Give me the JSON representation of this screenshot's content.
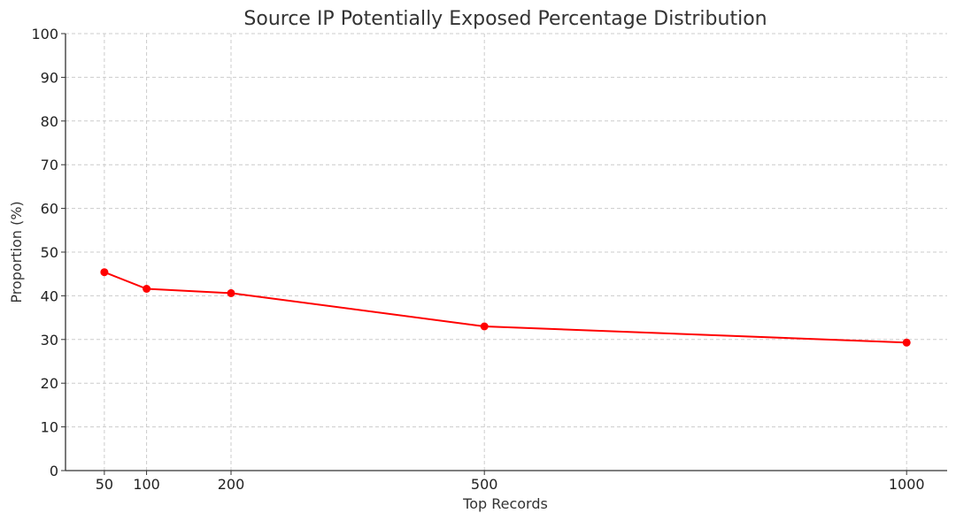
{
  "chart_data": {
    "type": "line",
    "title": "Source IP Potentially Exposed Percentage Distribution",
    "xlabel": "Top Records",
    "ylabel": "Proportion (%)",
    "x": [
      50,
      100,
      200,
      500,
      1000
    ],
    "x_ticks": [
      50,
      100,
      200,
      500,
      1000
    ],
    "xlim": [
      4,
      1048
    ],
    "y_ticks": [
      0,
      10,
      20,
      30,
      40,
      50,
      60,
      70,
      80,
      90,
      100
    ],
    "ylim": [
      0,
      100
    ],
    "grid": true,
    "series": [
      {
        "name": "",
        "color": "#ff0000",
        "marker": "circle",
        "values": [
          45.4,
          41.6,
          40.6,
          33.0,
          29.3
        ]
      }
    ]
  }
}
